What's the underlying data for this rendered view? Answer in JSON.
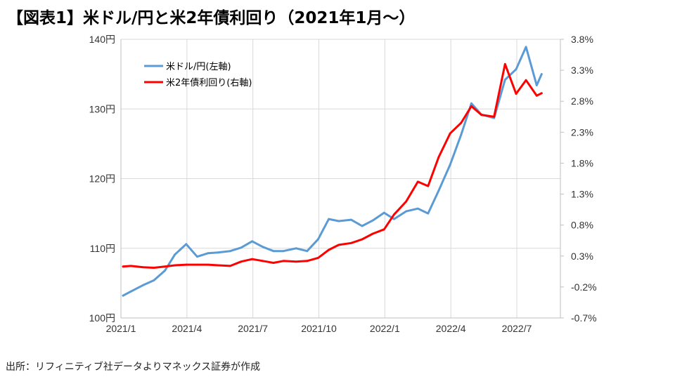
{
  "title": "【図表1】米ドル/円と米2年債利回り（2021年1月～）",
  "source": "出所：リフィニティブ社データよりマネックス証券が作成",
  "colors": {
    "usdjpy": "#5b9bd5",
    "yield": "#ff0000",
    "grid": "#d9d9d9",
    "negative_tick": "#ff0000"
  },
  "chart_data": {
    "type": "line",
    "x_ticks": [
      "2021/1",
      "2021/4",
      "2021/7",
      "2021/10",
      "2022/1",
      "2022/4",
      "2022/7"
    ],
    "y_left": {
      "ticks": [
        "100円",
        "110円",
        "120円",
        "130円",
        "140円"
      ],
      "range": [
        100,
        140
      ]
    },
    "y_right": {
      "ticks": [
        "-0.7%",
        "-0.2%",
        "0.3%",
        "0.8%",
        "1.3%",
        "1.8%",
        "2.3%",
        "2.8%",
        "3.3%",
        "3.8%"
      ],
      "range": [
        -0.7,
        3.8
      ]
    },
    "grid": true,
    "legend_position": "top-left",
    "series": [
      {
        "name": "米ドル/円(左軸)",
        "axis": "left",
        "x": [
          "2021-01-04",
          "2021-01-15",
          "2021-02-01",
          "2021-02-15",
          "2021-03-01",
          "2021-03-15",
          "2021-03-31",
          "2021-04-15",
          "2021-04-30",
          "2021-05-14",
          "2021-05-31",
          "2021-06-15",
          "2021-06-30",
          "2021-07-15",
          "2021-07-30",
          "2021-08-13",
          "2021-08-31",
          "2021-09-15",
          "2021-09-30",
          "2021-10-15",
          "2021-10-29",
          "2021-11-15",
          "2021-11-30",
          "2021-12-15",
          "2021-12-31",
          "2022-01-14",
          "2022-01-31",
          "2022-02-15",
          "2022-02-28",
          "2022-03-15",
          "2022-03-31",
          "2022-04-15",
          "2022-04-29",
          "2022-05-13",
          "2022-05-31",
          "2022-06-15",
          "2022-06-30",
          "2022-07-14",
          "2022-07-29",
          "2022-08-05"
        ],
        "y": [
          103.2,
          103.8,
          104.7,
          105.4,
          106.8,
          109.1,
          110.6,
          108.8,
          109.3,
          109.4,
          109.6,
          110.1,
          111.0,
          110.2,
          109.6,
          109.6,
          110.0,
          109.6,
          111.3,
          114.2,
          113.9,
          114.1,
          113.2,
          114.0,
          115.1,
          114.2,
          115.3,
          115.7,
          115.0,
          118.3,
          122.0,
          126.3,
          130.8,
          129.2,
          128.7,
          134.2,
          135.7,
          138.9,
          133.4,
          135.0
        ]
      },
      {
        "name": "米2年債利回り(右軸)",
        "axis": "right",
        "x": [
          "2021-01-04",
          "2021-01-15",
          "2021-02-01",
          "2021-02-15",
          "2021-03-01",
          "2021-03-15",
          "2021-03-31",
          "2021-04-15",
          "2021-04-30",
          "2021-05-14",
          "2021-05-31",
          "2021-06-15",
          "2021-06-30",
          "2021-07-15",
          "2021-07-30",
          "2021-08-13",
          "2021-08-31",
          "2021-09-15",
          "2021-09-30",
          "2021-10-15",
          "2021-10-29",
          "2021-11-15",
          "2021-11-30",
          "2021-12-15",
          "2021-12-31",
          "2022-01-14",
          "2022-01-31",
          "2022-02-15",
          "2022-02-28",
          "2022-03-15",
          "2022-03-31",
          "2022-04-15",
          "2022-04-29",
          "2022-05-13",
          "2022-05-31",
          "2022-06-15",
          "2022-06-30",
          "2022-07-14",
          "2022-07-29",
          "2022-08-05"
        ],
        "y": [
          0.13,
          0.14,
          0.12,
          0.11,
          0.13,
          0.15,
          0.16,
          0.16,
          0.16,
          0.15,
          0.14,
          0.21,
          0.25,
          0.22,
          0.19,
          0.22,
          0.21,
          0.22,
          0.27,
          0.4,
          0.48,
          0.51,
          0.57,
          0.66,
          0.73,
          0.97,
          1.18,
          1.5,
          1.43,
          1.9,
          2.28,
          2.45,
          2.72,
          2.58,
          2.55,
          3.4,
          2.92,
          3.14,
          2.89,
          2.93
        ]
      }
    ]
  }
}
